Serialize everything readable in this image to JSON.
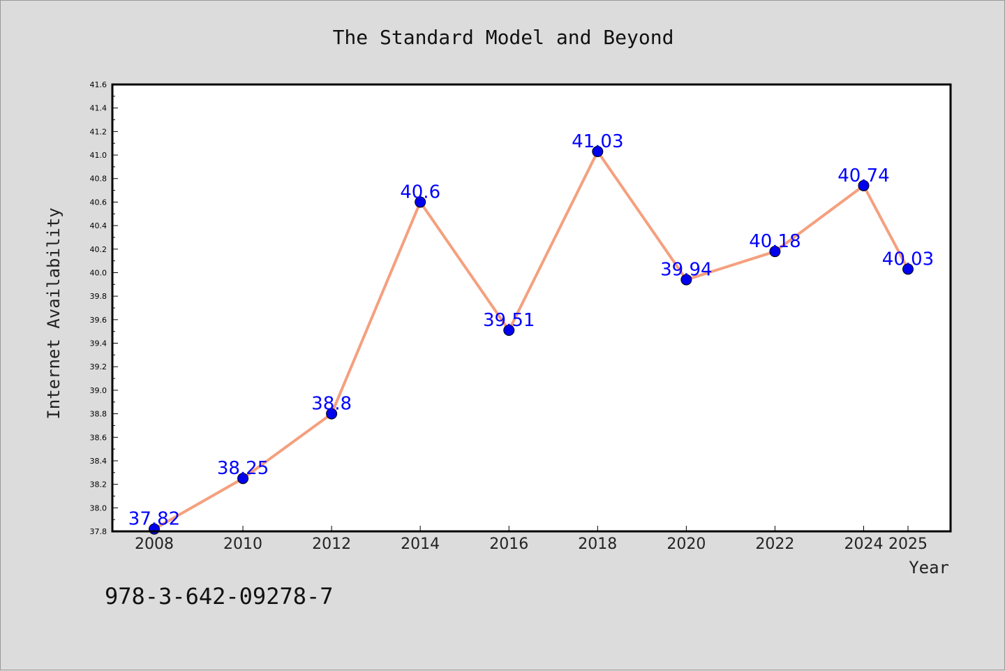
{
  "chart_data": {
    "type": "line",
    "title": "The Standard Model and Beyond",
    "xlabel": "Year",
    "ylabel": "Internet Availability",
    "x": [
      "2008",
      "2010",
      "2012",
      "2014",
      "2016",
      "2018",
      "2020",
      "2022",
      "2024",
      "2025"
    ],
    "series": [
      {
        "values": [
          37.82,
          38.25,
          38.8,
          40.6,
          39.51,
          41.03,
          39.94,
          40.18,
          40.74,
          40.03
        ]
      }
    ],
    "data_labels": [
      "37.82",
      "38.25",
      "38.8",
      "40.6",
      "39.51",
      "41.03",
      "39.94",
      "40.18",
      "40.74",
      "40.03"
    ],
    "ylim": [
      37.8,
      41.6
    ],
    "y_ticks": [
      "37.8",
      "38.0",
      "38.2",
      "38.4",
      "38.6",
      "38.8",
      "39.0",
      "39.2",
      "39.4",
      "39.6",
      "39.8",
      "40.0",
      "40.2",
      "40.4",
      "40.6",
      "40.8",
      "41.0",
      "41.2",
      "41.4",
      "41.6"
    ],
    "grid": false,
    "legend": "none",
    "line_color": "#f5a07e",
    "marker_color": "#0000ee",
    "label_color": "#0000ff"
  },
  "footer_text": "978-3-642-09278-7"
}
